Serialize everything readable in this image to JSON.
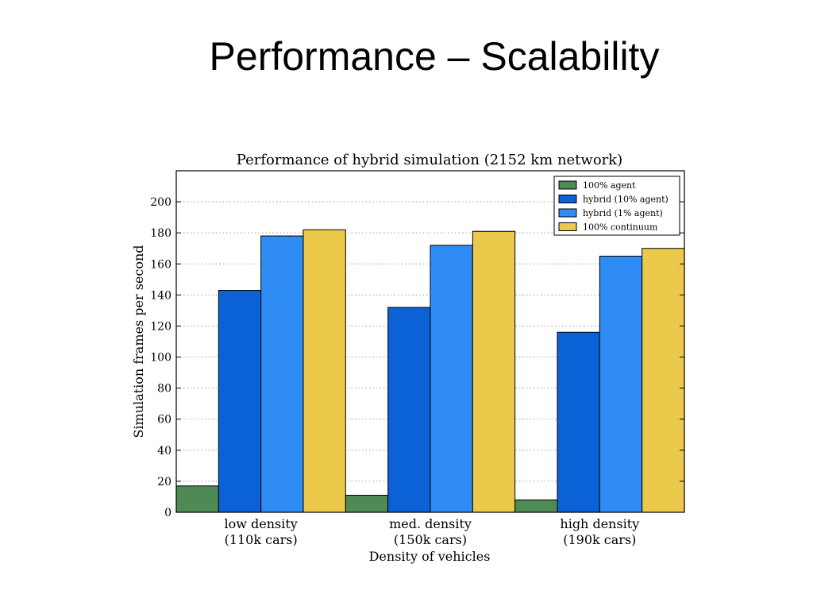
{
  "slide": {
    "title": "Performance – Scalability"
  },
  "chart_data": {
    "type": "bar",
    "title": "Performance of hybrid simulation (2152 km network)",
    "xlabel": "Density of vehicles",
    "ylabel": "Simulation frames per second",
    "ylim": [
      0,
      220
    ],
    "yticks": [
      0,
      20,
      40,
      60,
      80,
      100,
      120,
      140,
      160,
      180,
      200
    ],
    "grid": true,
    "legend_position": "top-right",
    "categories": [
      [
        "low density",
        "(110k cars)"
      ],
      [
        "med. density",
        "(150k cars)"
      ],
      [
        "high density",
        "(190k cars)"
      ]
    ],
    "series": [
      {
        "name": "100% agent",
        "color": "#4f8a55",
        "values": [
          17,
          11,
          8
        ]
      },
      {
        "name": "hybrid (10% agent)",
        "color": "#0b62d6",
        "values": [
          143,
          132,
          116
        ]
      },
      {
        "name": "hybrid (1% agent)",
        "color": "#2f8cf4",
        "values": [
          178,
          172,
          165
        ]
      },
      {
        "name": "100% continuum",
        "color": "#ecc94b",
        "values": [
          182,
          181,
          170
        ]
      }
    ]
  }
}
